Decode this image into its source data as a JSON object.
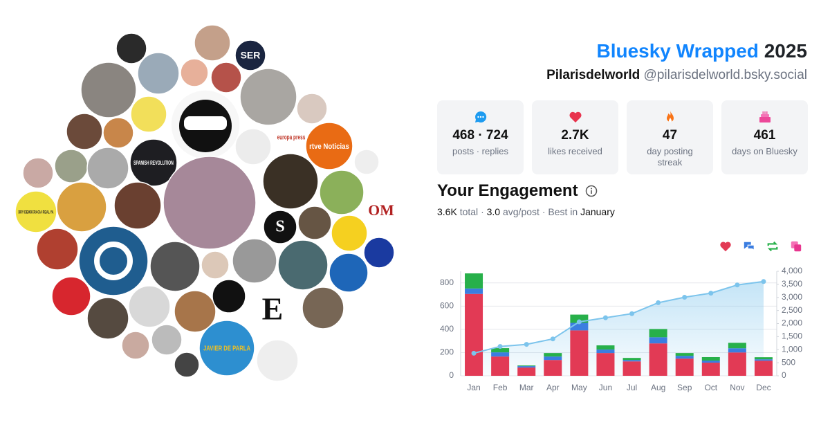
{
  "header": {
    "title": "Bluesky Wrapped",
    "year": "2025",
    "name": "Pilarisdelworld",
    "handle": "@pilarisdelworld.bsky.social"
  },
  "stats": [
    {
      "value": "468 · 724",
      "label": "posts · replies"
    },
    {
      "value": "2.7K",
      "label": "likes received"
    },
    {
      "value": "47",
      "label": "day posting streak"
    },
    {
      "value": "461",
      "label": "days on Bluesky"
    }
  ],
  "engagement": {
    "title": "Your Engagement",
    "summary": [
      "3.6K",
      "total",
      "·",
      "3.0",
      "avg/post",
      "·",
      "Best in",
      "January"
    ]
  },
  "avatar_labels": [
    "SER",
    "SPANISH REVOLUTION",
    "europa press",
    "rtve Noticias",
    "DRY DEMOCRACIA REAL YA",
    "OM",
    "S",
    "E",
    "JAVIER DE PARLA"
  ],
  "chart_data": {
    "type": "bar",
    "stacked": true,
    "categories": [
      "Jan",
      "Feb",
      "Mar",
      "Apr",
      "May",
      "Jun",
      "Jul",
      "Aug",
      "Sep",
      "Oct",
      "Nov",
      "Dec"
    ],
    "series": [
      {
        "color": "#e23a55",
        "values": [
          705,
          166,
          71,
          136,
          391,
          196,
          124,
          279,
          148,
          113,
          201,
          130
        ]
      },
      {
        "color": "#3b7de0",
        "values": [
          47,
          36,
          12,
          30,
          65,
          30,
          12,
          53,
          24,
          18,
          36,
          12
        ]
      },
      {
        "color": "#27b04a",
        "values": [
          130,
          36,
          6,
          30,
          71,
          36,
          18,
          71,
          24,
          30,
          47,
          18
        ]
      },
      {
        "type": "area",
        "axis": "y2",
        "color": "#7cc4ec",
        "values": [
          863,
          1124,
          1203,
          1412,
          2065,
          2222,
          2379,
          2797,
          3007,
          3163,
          3477,
          3608
        ]
      }
    ],
    "ylim": [
      0,
      900
    ],
    "yticks": [
      0,
      200,
      400,
      600,
      800
    ],
    "y2lim": [
      0,
      4000
    ],
    "y2ticks": [
      0,
      500,
      {
        "value": 1000,
        "label": "1,000"
      },
      {
        "value": 1500,
        "label": "1,500"
      },
      {
        "value": 2000,
        "label": "2,000"
      },
      {
        "value": 2500,
        "label": "2,500"
      },
      {
        "value": 3000,
        "label": "3,000"
      },
      {
        "value": 3500,
        "label": "3,500"
      },
      {
        "value": 4000,
        "label": "4,000"
      }
    ],
    "grid": true
  }
}
